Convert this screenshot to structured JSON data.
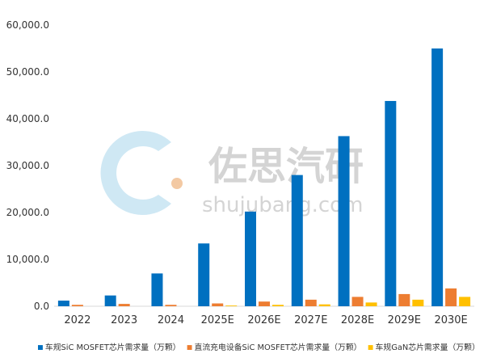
{
  "chart_data": {
    "type": "bar",
    "categories": [
      "2022",
      "2023",
      "2024",
      "2025E",
      "2026E",
      "2027E",
      "2028E",
      "2029E",
      "2030E"
    ],
    "series": [
      {
        "name": "车规SiC MOSFET芯片需求量（万颗）",
        "color": "#0070c0",
        "values": [
          1200,
          2300,
          7000,
          13400,
          20200,
          28000,
          36300,
          43800,
          55000
        ]
      },
      {
        "name": "直流充电设备SiC MOSFET芯片需求量（万颗）",
        "color": "#ed7d31",
        "values": [
          300,
          500,
          300,
          600,
          1000,
          1400,
          2000,
          2600,
          3800
        ]
      },
      {
        "name": "车规GaN芯片需求量（万颗）",
        "color": "#ffc000",
        "values": [
          0,
          0,
          0,
          150,
          300,
          400,
          800,
          1400,
          2000
        ]
      }
    ],
    "ylim": [
      0,
      60000
    ],
    "yticks": [
      "0.0",
      "10,000.0",
      "20,000.0",
      "30,000.0",
      "40,000.0",
      "50,000.0",
      "60,000.0"
    ],
    "legend_position": "bottom",
    "grid": false,
    "title": "",
    "xlabel": "",
    "ylabel": ""
  },
  "watermark": {
    "brand": "佐思汽研",
    "url": "shujubang.com"
  }
}
